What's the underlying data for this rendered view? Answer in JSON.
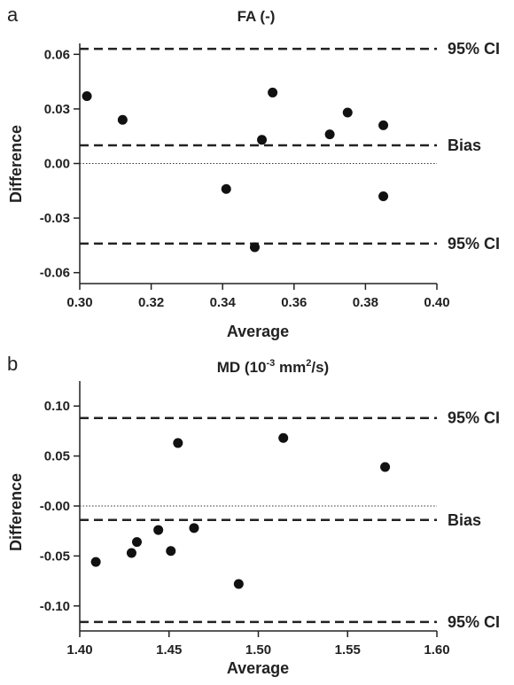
{
  "chart_data": [
    {
      "panel_label": "a",
      "type": "scatter",
      "title": "FA (-)",
      "title_sup": "",
      "title_suffix": "",
      "xlabel": "Average",
      "ylabel": "Difference",
      "xlim": [
        0.3,
        0.4
      ],
      "ylim": [
        -0.066,
        0.066
      ],
      "xticks": [
        0.3,
        0.32,
        0.34,
        0.36,
        0.38,
        0.4
      ],
      "xtick_labels": [
        "0.30",
        "0.32",
        "0.34",
        "0.36",
        "0.38",
        "0.40"
      ],
      "yticks": [
        0.06,
        0.03,
        0.0,
        -0.03,
        -0.06
      ],
      "ytick_labels": [
        "0.06",
        "0.03",
        "0.00",
        "-0.03",
        "-0.06"
      ],
      "zero_line": 0.0,
      "reference_lines": [
        {
          "label": "95% CI",
          "value": 0.063
        },
        {
          "label": "Bias",
          "value": 0.01
        },
        {
          "label": "95% CI",
          "value": -0.044
        }
      ],
      "points": [
        {
          "x": 0.302,
          "y": 0.037
        },
        {
          "x": 0.312,
          "y": 0.024
        },
        {
          "x": 0.341,
          "y": -0.014
        },
        {
          "x": 0.349,
          "y": -0.046
        },
        {
          "x": 0.351,
          "y": 0.013
        },
        {
          "x": 0.354,
          "y": 0.039
        },
        {
          "x": 0.37,
          "y": 0.016
        },
        {
          "x": 0.375,
          "y": 0.028
        },
        {
          "x": 0.385,
          "y": 0.021
        },
        {
          "x": 0.385,
          "y": -0.018
        }
      ]
    },
    {
      "panel_label": "b",
      "type": "scatter",
      "title": "MD (10",
      "title_sup": "-3",
      "title_mid": " mm",
      "title_sup2": "2",
      "title_suffix": "/s)",
      "xlabel": "Average",
      "ylabel": "Difference",
      "xlim": [
        1.4,
        1.6
      ],
      "ylim": [
        -0.125,
        0.125
      ],
      "xticks": [
        1.4,
        1.45,
        1.5,
        1.55,
        1.6
      ],
      "xtick_labels": [
        "1.40",
        "1.45",
        "1.50",
        "1.55",
        "1.60"
      ],
      "yticks": [
        0.1,
        0.05,
        0.0,
        -0.05,
        -0.1
      ],
      "ytick_labels": [
        "0.10",
        "0.05",
        "-0.00",
        "-0.05",
        "-0.10"
      ],
      "zero_line": 0.0,
      "reference_lines": [
        {
          "label": "95% CI",
          "value": 0.088
        },
        {
          "label": "Bias",
          "value": -0.014
        },
        {
          "label": "95% CI",
          "value": -0.116
        }
      ],
      "points": [
        {
          "x": 1.409,
          "y": -0.056
        },
        {
          "x": 1.429,
          "y": -0.047
        },
        {
          "x": 1.432,
          "y": -0.036
        },
        {
          "x": 1.444,
          "y": -0.024
        },
        {
          "x": 1.451,
          "y": -0.045
        },
        {
          "x": 1.455,
          "y": 0.063
        },
        {
          "x": 1.464,
          "y": -0.022
        },
        {
          "x": 1.489,
          "y": -0.078
        },
        {
          "x": 1.514,
          "y": 0.068
        },
        {
          "x": 1.571,
          "y": 0.039
        }
      ]
    }
  ]
}
